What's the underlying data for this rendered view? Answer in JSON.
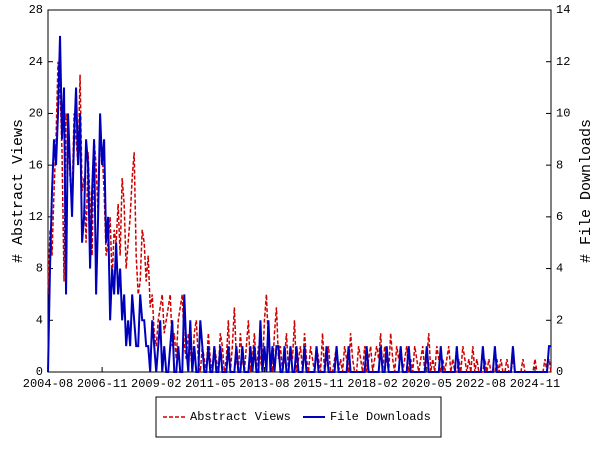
{
  "chart_data": {
    "type": "line",
    "y_label": "# Abstract Views",
    "y2_label": "# File Downloads",
    "ylim": [
      0,
      28
    ],
    "yticks": [
      0,
      4,
      8,
      12,
      16,
      20,
      24,
      28
    ],
    "y2lim": [
      0,
      14
    ],
    "y2ticks": [
      0,
      2,
      4,
      6,
      8,
      10,
      12,
      14
    ],
    "categories": [
      "2004-08",
      null,
      null,
      null,
      null,
      null,
      null,
      null,
      null,
      null,
      null,
      null,
      null,
      null,
      null,
      null,
      null,
      null,
      null,
      null,
      null,
      null,
      null,
      null,
      null,
      null,
      null,
      "2006-11",
      null,
      null,
      null,
      null,
      null,
      null,
      null,
      null,
      null,
      null,
      null,
      null,
      null,
      null,
      null,
      null,
      null,
      null,
      null,
      null,
      null,
      null,
      null,
      null,
      null,
      null,
      "2009-02",
      null,
      null,
      null,
      null,
      null,
      null,
      null,
      null,
      null,
      null,
      null,
      null,
      null,
      null,
      null,
      null,
      null,
      null,
      null,
      null,
      null,
      null,
      null,
      null,
      null,
      null,
      "2011-05",
      null,
      null,
      null,
      null,
      null,
      null,
      null,
      null,
      null,
      null,
      null,
      null,
      null,
      null,
      null,
      null,
      null,
      null,
      null,
      null,
      null,
      null,
      null,
      null,
      null,
      null,
      "2013-08",
      null,
      null,
      null,
      null,
      null,
      null,
      null,
      null,
      null,
      null,
      null,
      null,
      null,
      null,
      null,
      null,
      null,
      null,
      null,
      null,
      null,
      null,
      null,
      null,
      null,
      null,
      "2015-11",
      null,
      null,
      null,
      null,
      null,
      null,
      null,
      null,
      null,
      null,
      null,
      null,
      null,
      null,
      null,
      null,
      null,
      null,
      null,
      null,
      null,
      null,
      null,
      null,
      null,
      null,
      "2018-02",
      null,
      null,
      null,
      null,
      null,
      null,
      null,
      null,
      null,
      null,
      null,
      null,
      null,
      null,
      null,
      null,
      null,
      null,
      null,
      null,
      null,
      null,
      null,
      null,
      null,
      null,
      "2020-05",
      null,
      null,
      null,
      null,
      null,
      null,
      null,
      null,
      null,
      null,
      null,
      null,
      null,
      null,
      null,
      null,
      null,
      null,
      null,
      null,
      null,
      null,
      null,
      null,
      null,
      null,
      "2022-08",
      null,
      null,
      null,
      null,
      null,
      null,
      null,
      null,
      null,
      null,
      null,
      null,
      null,
      null,
      null,
      null,
      null,
      null,
      null,
      null,
      null,
      null,
      null,
      null,
      null,
      null,
      "2024-11",
      null,
      null,
      null,
      null,
      null,
      null,
      null,
      null
    ],
    "series": [
      {
        "name": "Abstract Views",
        "color": "#cc0000",
        "dashed": true,
        "values": [
          6,
          11,
          9,
          14,
          18,
          24,
          22,
          17,
          7,
          20,
          19,
          15,
          13,
          20,
          18,
          16,
          23,
          14,
          15,
          10,
          17,
          13,
          9,
          18,
          16,
          12,
          18,
          17,
          14,
          9,
          10,
          12,
          7,
          11,
          10,
          13,
          9,
          15,
          13,
          8,
          10,
          12,
          15,
          17,
          9,
          6,
          7,
          11,
          10,
          7,
          9,
          5,
          6,
          3,
          2,
          4,
          5,
          6,
          3,
          4,
          5,
          6,
          2,
          3,
          1,
          4,
          5,
          6,
          2,
          1,
          3,
          2,
          0,
          3,
          4,
          1,
          0,
          2,
          1,
          0,
          3,
          1,
          0,
          2,
          1,
          0,
          3,
          2,
          0,
          1,
          4,
          0,
          2,
          5,
          1,
          0,
          3,
          1,
          0,
          2,
          4,
          0,
          1,
          3,
          0,
          2,
          1,
          0,
          4,
          6,
          2,
          1,
          0,
          3,
          5,
          1,
          2,
          0,
          1,
          3,
          0,
          2,
          1,
          4,
          0,
          1,
          2,
          0,
          3,
          1,
          0,
          2,
          1,
          0,
          2,
          1,
          0,
          3,
          0,
          1,
          2,
          0,
          0,
          1,
          2,
          0,
          1,
          0,
          2,
          1,
          0,
          3,
          1,
          0,
          0,
          2,
          1,
          0,
          2,
          0,
          1,
          2,
          0,
          1,
          2,
          1,
          3,
          0,
          2,
          1,
          0,
          3,
          1,
          0,
          2,
          1,
          2,
          0,
          1,
          2,
          0,
          1,
          0,
          2,
          1,
          0,
          1,
          2,
          0,
          1,
          3,
          0,
          1,
          0,
          2,
          1,
          0,
          1,
          0,
          1,
          2,
          0,
          1,
          0,
          0,
          1,
          0,
          2,
          1,
          0,
          1,
          0,
          2,
          0,
          1,
          0,
          0,
          0,
          1,
          0,
          1,
          0,
          0,
          0,
          1,
          0,
          1,
          0,
          0,
          1,
          0,
          0,
          1,
          0,
          0,
          0,
          0,
          1,
          0,
          0,
          0,
          0,
          0,
          1,
          0,
          0,
          0,
          0,
          1,
          0,
          1,
          0
        ]
      },
      {
        "name": "File Downloads",
        "color": "#0000bb",
        "axis": "y2",
        "values": [
          0,
          4,
          7,
          9,
          8,
          10,
          13,
          9,
          11,
          3,
          10,
          8,
          6,
          9,
          11,
          8,
          10,
          5,
          6,
          9,
          8,
          4,
          7,
          9,
          3,
          6,
          10,
          8,
          9,
          5,
          6,
          2,
          4,
          3,
          5,
          3,
          4,
          2,
          3,
          1,
          2,
          1,
          3,
          2,
          1,
          1,
          3,
          2,
          2,
          1,
          1,
          0,
          2,
          1,
          0,
          1,
          2,
          0,
          1,
          0,
          0,
          1,
          2,
          0,
          0,
          1,
          0,
          0,
          3,
          1,
          0,
          2,
          0,
          1,
          0,
          0,
          2,
          1,
          0,
          0,
          1,
          0,
          0,
          1,
          0,
          0,
          1,
          0,
          0,
          0,
          1,
          0,
          0,
          0,
          1,
          0,
          0,
          1,
          0,
          0,
          0,
          1,
          0,
          1,
          0,
          0,
          2,
          0,
          1,
          0,
          2,
          0,
          1,
          0,
          1,
          1,
          0,
          0,
          1,
          0,
          0,
          1,
          0,
          0,
          1,
          0,
          0,
          0,
          1,
          0,
          0,
          0,
          0,
          0,
          1,
          0,
          0,
          0,
          0,
          1,
          0,
          0,
          0,
          0,
          1,
          0,
          0,
          0,
          0,
          0,
          1,
          0,
          0,
          0,
          0,
          0,
          0,
          0,
          0,
          1,
          0,
          0,
          0,
          0,
          0,
          0,
          1,
          0,
          0,
          1,
          0,
          0,
          0,
          0,
          0,
          0,
          1,
          0,
          0,
          0,
          1,
          0,
          0,
          0,
          0,
          0,
          0,
          0,
          0,
          1,
          0,
          0,
          0,
          0,
          0,
          0,
          1,
          0,
          0,
          0,
          0,
          0,
          0,
          0,
          1,
          0,
          0,
          0,
          0,
          0,
          0,
          0,
          0,
          0,
          0,
          0,
          0,
          1,
          0,
          0,
          0,
          0,
          0,
          1,
          0,
          0,
          0,
          0,
          0,
          0,
          0,
          0,
          1,
          0,
          0,
          0,
          0,
          0,
          0,
          0,
          0,
          0,
          0,
          0,
          0,
          0,
          0,
          0,
          0,
          0,
          1,
          1
        ]
      }
    ]
  }
}
